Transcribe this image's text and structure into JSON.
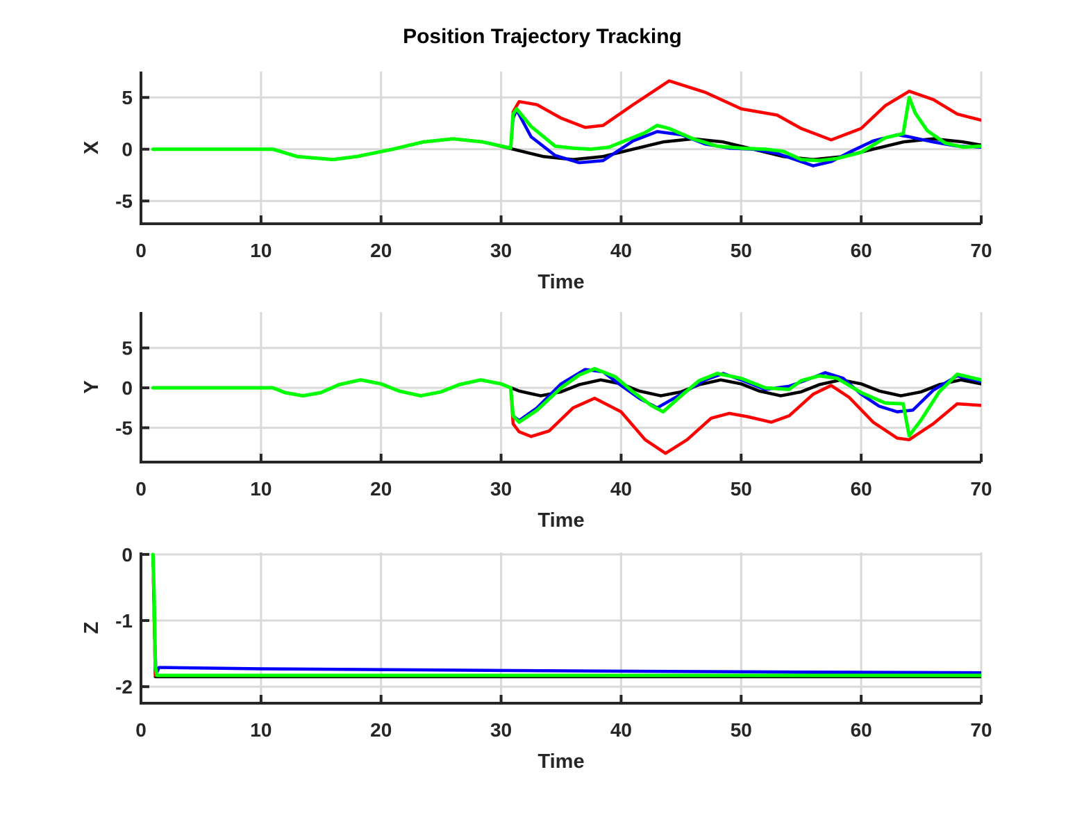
{
  "figure": {
    "title": "Position Trajectory Tracking"
  },
  "colors": {
    "reference": "#000000",
    "blue_trace": "#0000ff",
    "red_trace": "#ff0000",
    "green_trace": "#00ff00",
    "grid": "#d9d9d9",
    "axis": "#262626"
  },
  "chart_data": [
    {
      "type": "line",
      "ylabel": "X",
      "xlabel": "Time",
      "xlim": [
        0,
        70
      ],
      "ylim": [
        -7.2,
        7.5
      ],
      "xticks": [
        0,
        10,
        20,
        30,
        40,
        50,
        60,
        70
      ],
      "yticks": [
        -5,
        0,
        5
      ],
      "ytick_labels": [
        "-5",
        "0",
        "5"
      ],
      "grid": true,
      "series": [
        {
          "color": "#000000",
          "x": [
            1,
            11,
            13,
            16,
            18,
            21,
            23.5,
            26,
            28.5,
            31,
            33.5,
            36,
            38.5,
            41,
            43.5,
            46,
            48.5,
            51,
            53.5,
            56,
            58.5,
            61,
            63.5,
            66,
            68.5,
            70
          ],
          "y": [
            0,
            0,
            -0.7,
            -1,
            -0.7,
            0,
            0.7,
            1,
            0.7,
            0,
            -0.7,
            -1,
            -0.7,
            0,
            0.7,
            1,
            0.7,
            0,
            -0.7,
            -1,
            -0.7,
            0,
            0.7,
            1,
            0.7,
            0.4
          ]
        },
        {
          "color": "#0000ff",
          "x": [
            1,
            11,
            13,
            16,
            18,
            21,
            23.5,
            26,
            28.5,
            30.8,
            31.0,
            31.3,
            32.5,
            34.5,
            36.5,
            38.5,
            41,
            43,
            45,
            47,
            49,
            51,
            53,
            55,
            56,
            57.5,
            59,
            61,
            63,
            64,
            66,
            68,
            70
          ],
          "y": [
            0,
            0,
            -0.7,
            -1,
            -0.7,
            0,
            0.7,
            1,
            0.7,
            0.1,
            3.0,
            3.8,
            1.2,
            -0.6,
            -1.3,
            -1.1,
            0.8,
            1.7,
            1.4,
            0.5,
            0.1,
            0.0,
            -0.4,
            -1.2,
            -1.6,
            -1.2,
            -0.3,
            0.8,
            1.4,
            1.2,
            0.7,
            0.3,
            0.2
          ]
        },
        {
          "color": "#ff0000",
          "x": [
            1,
            11,
            13,
            16,
            18,
            21,
            23.5,
            26,
            28.5,
            30.8,
            31.0,
            31.5,
            33,
            35,
            37,
            38.5,
            41,
            44,
            47,
            50,
            53,
            55,
            57.5,
            60,
            62,
            64,
            66,
            68,
            70
          ],
          "y": [
            0,
            0,
            -0.7,
            -1,
            -0.7,
            0,
            0.7,
            1,
            0.7,
            0.1,
            3.6,
            4.6,
            4.3,
            3.0,
            2.1,
            2.3,
            4.3,
            6.6,
            5.5,
            3.9,
            3.3,
            2.0,
            0.9,
            2.0,
            4.2,
            5.6,
            4.8,
            3.4,
            2.8
          ]
        },
        {
          "color": "#00ff00",
          "x": [
            1,
            11,
            13,
            16,
            18,
            21,
            23.5,
            26,
            28.5,
            30.8,
            31.0,
            31.3,
            32.5,
            34.5,
            36,
            37.5,
            39,
            40.5,
            42,
            43,
            44,
            46,
            48,
            50,
            52,
            53.5,
            55,
            56.5,
            58,
            60,
            62,
            63.5,
            64.0,
            64.5,
            65.5,
            67,
            68.5,
            70
          ],
          "y": [
            0,
            0,
            -0.7,
            -1,
            -0.7,
            0,
            0.7,
            1,
            0.7,
            0.1,
            3.4,
            3.9,
            2.2,
            0.3,
            0.1,
            0.0,
            0.2,
            0.9,
            1.6,
            2.3,
            2.0,
            1.0,
            0.3,
            0.1,
            0.0,
            -0.2,
            -1.0,
            -1.1,
            -0.9,
            -0.3,
            1.1,
            1.5,
            5.0,
            3.5,
            1.8,
            0.6,
            0.2,
            0.3
          ]
        }
      ]
    },
    {
      "type": "line",
      "ylabel": "Y",
      "xlabel": "Time",
      "xlim": [
        0,
        70
      ],
      "ylim": [
        -9.3,
        9.5
      ],
      "xticks": [
        0,
        10,
        20,
        30,
        40,
        50,
        60,
        70
      ],
      "yticks": [
        -5,
        0,
        5
      ],
      "ytick_labels": [
        "-5",
        "0",
        "5"
      ],
      "grid": true,
      "series": [
        {
          "color": "#000000",
          "x": [
            1,
            11,
            12,
            13.5,
            15,
            16.5,
            18.3,
            20,
            21.5,
            23.3,
            25,
            26.5,
            28.3,
            30,
            31.5,
            33.3,
            35,
            36.5,
            38.3,
            40,
            41.5,
            43.3,
            45,
            46.5,
            48.3,
            50,
            51.5,
            53.3,
            55,
            56.5,
            58.3,
            60,
            61.5,
            63.3,
            65,
            66.5,
            68.3,
            70
          ],
          "y": [
            0,
            0,
            -0.6,
            -1,
            -0.6,
            0.4,
            1,
            0.5,
            -0.4,
            -1,
            -0.5,
            0.4,
            1,
            0.5,
            -0.4,
            -1,
            -0.5,
            0.4,
            1,
            0.5,
            -0.4,
            -1,
            -0.5,
            0.4,
            1,
            0.5,
            -0.4,
            -1,
            -0.5,
            0.4,
            1,
            0.5,
            -0.4,
            -1,
            -0.5,
            0.4,
            1,
            0.5
          ]
        },
        {
          "color": "#0000ff",
          "x": [
            1,
            11,
            12,
            13.5,
            15,
            16.5,
            18.3,
            20,
            21.5,
            23.3,
            25,
            26.5,
            28.3,
            30,
            30.8,
            31.0,
            31.5,
            33,
            35,
            37,
            38.5,
            40,
            41.5,
            43,
            45,
            47,
            48.5,
            50,
            52,
            54,
            56,
            57,
            58.5,
            60,
            61.5,
            63,
            64.3,
            66,
            68,
            70
          ],
          "y": [
            0,
            0,
            -0.6,
            -1,
            -0.6,
            0.4,
            1,
            0.5,
            -0.4,
            -1,
            -0.5,
            0.4,
            1,
            0.5,
            0,
            -3.5,
            -4.1,
            -2.5,
            0.5,
            2.3,
            2.0,
            0.3,
            -1.3,
            -2.5,
            -0.8,
            1.0,
            1.8,
            1.0,
            -0.2,
            0.2,
            1.3,
            1.9,
            1.2,
            -0.8,
            -2.3,
            -3.0,
            -2.8,
            -0.3,
            1.5,
            0.8
          ]
        },
        {
          "color": "#ff0000",
          "x": [
            1,
            11,
            12,
            13.5,
            15,
            16.5,
            18.3,
            20,
            21.5,
            23.3,
            25,
            26.5,
            28.3,
            30,
            30.8,
            31.0,
            31.5,
            32.5,
            34,
            36,
            37.8,
            40,
            42,
            43.7,
            45.5,
            47.5,
            49,
            50.5,
            52.5,
            54,
            56,
            57.5,
            59,
            61,
            63,
            64,
            66,
            68,
            70
          ],
          "y": [
            0,
            0,
            -0.6,
            -1,
            -0.6,
            0.4,
            1,
            0.5,
            -0.4,
            -1,
            -0.5,
            0.4,
            1,
            0.5,
            0,
            -4.5,
            -5.5,
            -6.1,
            -5.4,
            -2.5,
            -1.3,
            -3.0,
            -6.5,
            -8.2,
            -6.5,
            -3.8,
            -3.2,
            -3.6,
            -4.3,
            -3.5,
            -0.8,
            0.3,
            -1.2,
            -4.3,
            -6.3,
            -6.5,
            -4.5,
            -2.0,
            -2.2
          ]
        },
        {
          "color": "#00ff00",
          "x": [
            1,
            11,
            12,
            13.5,
            15,
            16.5,
            18.3,
            20,
            21.5,
            23.3,
            25,
            26.5,
            28.3,
            30,
            30.8,
            31.0,
            31.5,
            33,
            35,
            36.5,
            37.8,
            39.5,
            41,
            42.5,
            43.5,
            45,
            46.5,
            48,
            50,
            52,
            54,
            55,
            56.5,
            58,
            60,
            62,
            63.5,
            64.0,
            65,
            66.5,
            68,
            70
          ],
          "y": [
            0,
            0,
            -0.6,
            -1,
            -0.6,
            0.4,
            1,
            0.5,
            -0.4,
            -1,
            -0.5,
            0.4,
            1,
            0.5,
            0,
            -3.5,
            -4.3,
            -2.8,
            0.0,
            1.6,
            2.4,
            1.4,
            -0.5,
            -2.2,
            -3.0,
            -1.0,
            0.9,
            1.8,
            1.2,
            0.0,
            -0.2,
            0.9,
            1.5,
            1.2,
            -0.6,
            -1.9,
            -2.0,
            -6.0,
            -4.0,
            -0.5,
            1.7,
            1.0
          ]
        }
      ]
    },
    {
      "type": "line",
      "ylabel": "Z",
      "xlabel": "Time",
      "xlim": [
        0,
        70
      ],
      "ylim": [
        -2.25,
        0.03
      ],
      "xticks": [
        0,
        10,
        20,
        30,
        40,
        50,
        60,
        70
      ],
      "yticks": [
        -2,
        -1,
        0
      ],
      "ytick_labels": [
        "-2",
        "-1",
        "0"
      ],
      "grid": true,
      "series": [
        {
          "color": "#000000",
          "x": [
            1,
            1.2,
            2,
            70
          ],
          "y": [
            0,
            -1.85,
            -1.85,
            -1.85
          ]
        },
        {
          "color": "#0000ff",
          "x": [
            1,
            1.15,
            1.25,
            1.5,
            2,
            10,
            30,
            50,
            70
          ],
          "y": [
            0,
            -1.2,
            -1.82,
            -1.71,
            -1.71,
            -1.73,
            -1.755,
            -1.775,
            -1.79
          ]
        },
        {
          "color": "#ff0000",
          "x": [
            1,
            1.2,
            2,
            70
          ],
          "y": [
            0,
            -1.83,
            -1.83,
            -1.83
          ]
        },
        {
          "color": "#00ff00",
          "x": [
            1,
            1.1,
            1.2,
            1.35,
            2,
            70
          ],
          "y": [
            0,
            -0.6,
            -1.7,
            -1.83,
            -1.83,
            -1.83
          ]
        }
      ]
    }
  ]
}
